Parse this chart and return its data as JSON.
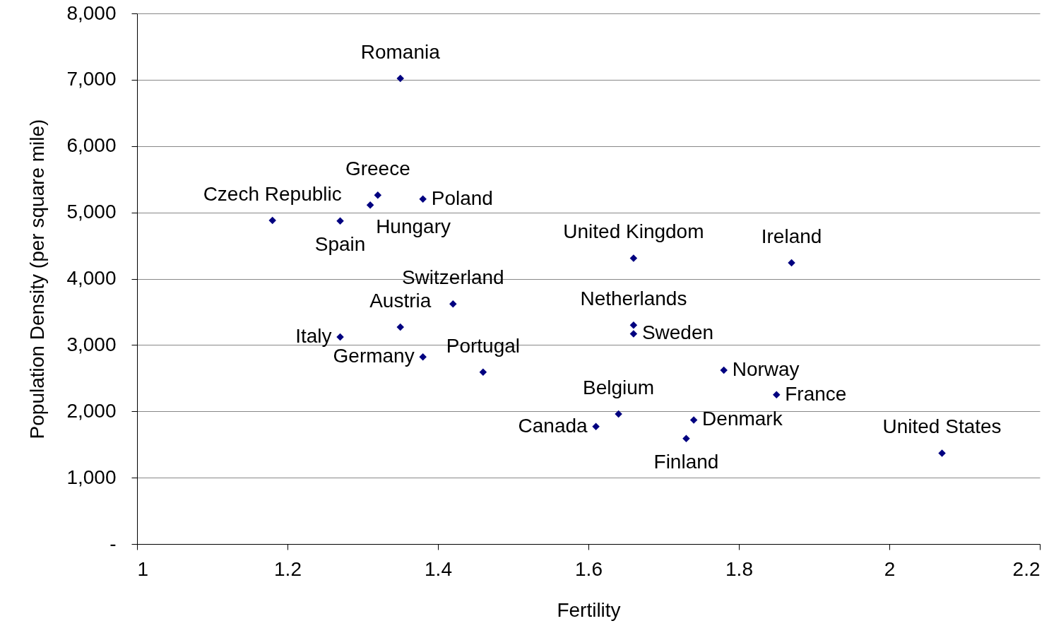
{
  "chart_data": {
    "type": "scatter",
    "xlabel": "Fertility",
    "ylabel": "Population Density (per square mile)",
    "x": [
      1.35,
      1.32,
      1.38,
      1.31,
      1.18,
      1.27,
      1.66,
      1.87,
      1.42,
      1.35,
      1.27,
      1.38,
      1.46,
      1.66,
      1.66,
      1.78,
      1.85,
      1.64,
      1.61,
      1.74,
      1.73,
      2.07
    ],
    "series": [
      {
        "color": "#000080",
        "values": [
          7020,
          5260,
          5200,
          5110,
          4880,
          4870,
          4310,
          4240,
          3620,
          3270,
          3120,
          2820,
          2590,
          3300,
          3170,
          2620,
          2250,
          1960,
          1770,
          1870,
          1590,
          1370
        ]
      }
    ],
    "annotations": [
      {
        "text": "Romania",
        "x": 1.35,
        "y": 7020
      },
      {
        "text": "Greece",
        "x": 1.32,
        "y": 5260
      },
      {
        "text": "Poland",
        "x": 1.38,
        "y": 5200
      },
      {
        "text": "Hungary",
        "x": 1.31,
        "y": 5110
      },
      {
        "text": "Czech Republic",
        "x": 1.18,
        "y": 4880
      },
      {
        "text": "Spain",
        "x": 1.27,
        "y": 4870
      },
      {
        "text": "United Kingdom",
        "x": 1.66,
        "y": 4310
      },
      {
        "text": "Ireland",
        "x": 1.87,
        "y": 4240
      },
      {
        "text": "Switzerland",
        "x": 1.42,
        "y": 3620
      },
      {
        "text": "Austria",
        "x": 1.35,
        "y": 3270
      },
      {
        "text": "Italy",
        "x": 1.27,
        "y": 3120
      },
      {
        "text": "Germany",
        "x": 1.38,
        "y": 2820
      },
      {
        "text": "Portugal",
        "x": 1.46,
        "y": 2590
      },
      {
        "text": "Netherlands",
        "x": 1.66,
        "y": 3300
      },
      {
        "text": "Sweden",
        "x": 1.66,
        "y": 3170
      },
      {
        "text": "Norway",
        "x": 1.78,
        "y": 2620
      },
      {
        "text": "France",
        "x": 1.85,
        "y": 2250
      },
      {
        "text": "Belgium",
        "x": 1.64,
        "y": 1960
      },
      {
        "text": "Canada",
        "x": 1.61,
        "y": 1770
      },
      {
        "text": "Denmark",
        "x": 1.74,
        "y": 1870
      },
      {
        "text": "Finland",
        "x": 1.73,
        "y": 1590
      },
      {
        "text": "United States",
        "x": 2.07,
        "y": 1370
      }
    ],
    "xlim": [
      1,
      2.2
    ],
    "xticks": [
      1,
      1.2,
      1.4,
      1.6,
      1.8,
      2,
      2.2
    ],
    "ylim": [
      0,
      8000
    ],
    "yticks": [
      {
        "value": 0,
        "label": "-"
      },
      {
        "value": 1000,
        "label": "1,000"
      },
      {
        "value": 2000,
        "label": "2,000"
      },
      {
        "value": 3000,
        "label": "3,000"
      },
      {
        "value": 4000,
        "label": "4,000"
      },
      {
        "value": 5000,
        "label": "5,000"
      },
      {
        "value": 6000,
        "label": "6,000"
      },
      {
        "value": 7000,
        "label": "7,000"
      },
      {
        "value": 8000,
        "label": "8,000"
      }
    ],
    "grid": "y",
    "marker": "diamond"
  }
}
